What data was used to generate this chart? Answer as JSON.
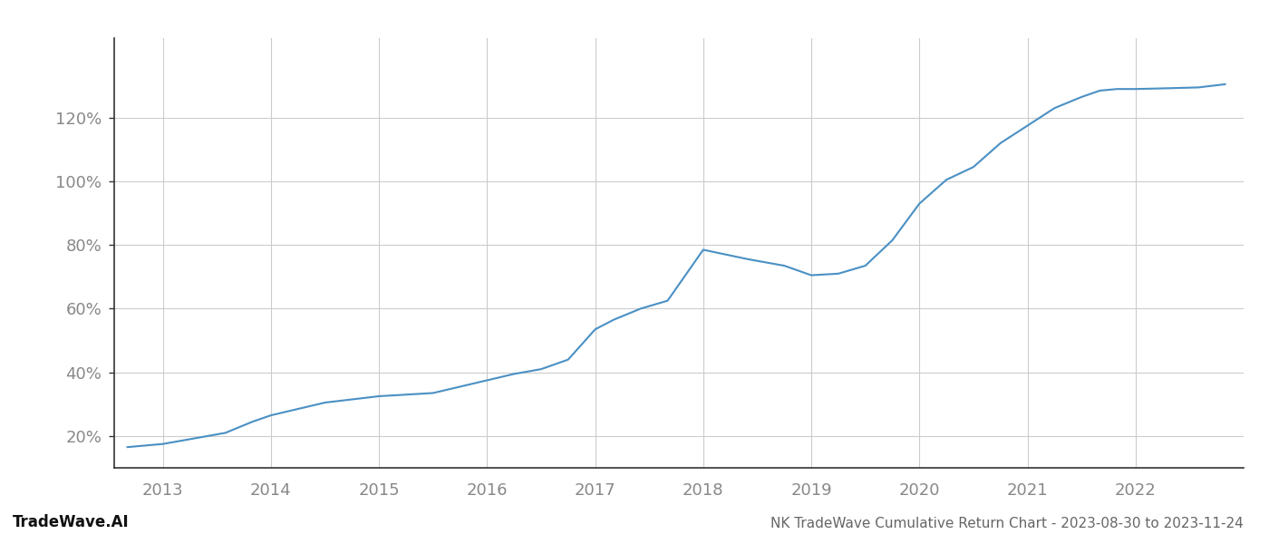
{
  "title": "NK TradeWave Cumulative Return Chart - 2023-08-30 to 2023-11-24",
  "watermark": "TradeWave.AI",
  "line_color": "#4a90c4",
  "background_color": "#ffffff",
  "grid_color": "#cccccc",
  "x_years": [
    2013,
    2014,
    2015,
    2016,
    2017,
    2018,
    2019,
    2020,
    2021,
    2022
  ],
  "x_data": [
    2012.67,
    2013.0,
    2013.25,
    2013.58,
    2013.83,
    2014.0,
    2014.25,
    2014.5,
    2014.75,
    2015.0,
    2015.25,
    2015.5,
    2015.75,
    2016.0,
    2016.25,
    2016.5,
    2016.75,
    2017.0,
    2017.17,
    2017.42,
    2017.67,
    2018.0,
    2018.42,
    2018.75,
    2019.0,
    2019.25,
    2019.5,
    2019.75,
    2020.0,
    2020.25,
    2020.5,
    2020.75,
    2021.0,
    2021.25,
    2021.5,
    2021.67,
    2021.83,
    2022.0,
    2022.25,
    2022.58,
    2022.83
  ],
  "y_data": [
    0.165,
    0.175,
    0.19,
    0.21,
    0.245,
    0.265,
    0.285,
    0.305,
    0.315,
    0.325,
    0.33,
    0.335,
    0.355,
    0.375,
    0.395,
    0.41,
    0.44,
    0.535,
    0.565,
    0.6,
    0.625,
    0.785,
    0.755,
    0.735,
    0.705,
    0.71,
    0.735,
    0.815,
    0.93,
    1.005,
    1.045,
    1.12,
    1.175,
    1.23,
    1.265,
    1.285,
    1.29,
    1.29,
    1.292,
    1.295,
    1.305
  ],
  "yticks": [
    0.2,
    0.4,
    0.6,
    0.8,
    1.0,
    1.2
  ],
  "ytick_labels": [
    "20%",
    "40%",
    "60%",
    "80%",
    "100%",
    "120%"
  ],
  "ylim": [
    0.1,
    1.45
  ],
  "xlim": [
    2012.55,
    2023.0
  ],
  "tick_color": "#888888",
  "spine_color": "#333333",
  "axis_label_color": "#666666",
  "title_fontsize": 11,
  "watermark_fontsize": 12,
  "tick_fontsize": 13,
  "line_width": 1.5
}
